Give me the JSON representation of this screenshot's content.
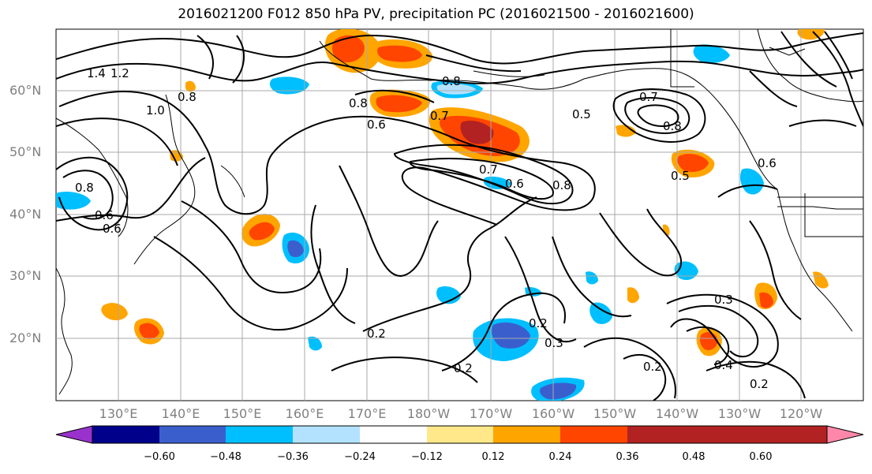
{
  "title": "2016021200 F012 850 hPa PV, precipitation PC (2016021500 - 2016021600)",
  "lat_labels": [
    "60°N",
    "50°N",
    "40°N",
    "30°N",
    "20°N"
  ],
  "lon_labels": [
    "130°E",
    "140°E",
    "150°E",
    "160°E",
    "170°E",
    "180°W",
    "170°W",
    "160°W",
    "150°W",
    "140°W",
    "130°W",
    "120°W"
  ],
  "colorbar": {
    "ticks": [
      "−0.60",
      "−0.48",
      "−0.36",
      "−0.24",
      "−0.12",
      "0.12",
      "0.24",
      "0.36",
      "0.48",
      "0.60"
    ],
    "colors": [
      "#9932cc",
      "#00008b",
      "#3a5fcd",
      "#00bfff",
      "#b2e2ff",
      "#ffffff",
      "#ffe88a",
      "#ffa500",
      "#ff4500",
      "#b22222",
      "#ff88aa"
    ]
  },
  "contour_labels": [
    "1.4",
    "1.2",
    "0.8",
    "1.0",
    "0.8",
    "0.6",
    "0.6",
    "0.8",
    "0.6",
    "0.7",
    "0.8",
    "0.7",
    "0.6",
    "0.8",
    "0.5",
    "0.7",
    "0.8",
    "0.5",
    "0.6",
    "0.2",
    "0.2",
    "0.3",
    "0.2",
    "0.3",
    "0.4",
    "0.2",
    "0.2"
  ]
}
